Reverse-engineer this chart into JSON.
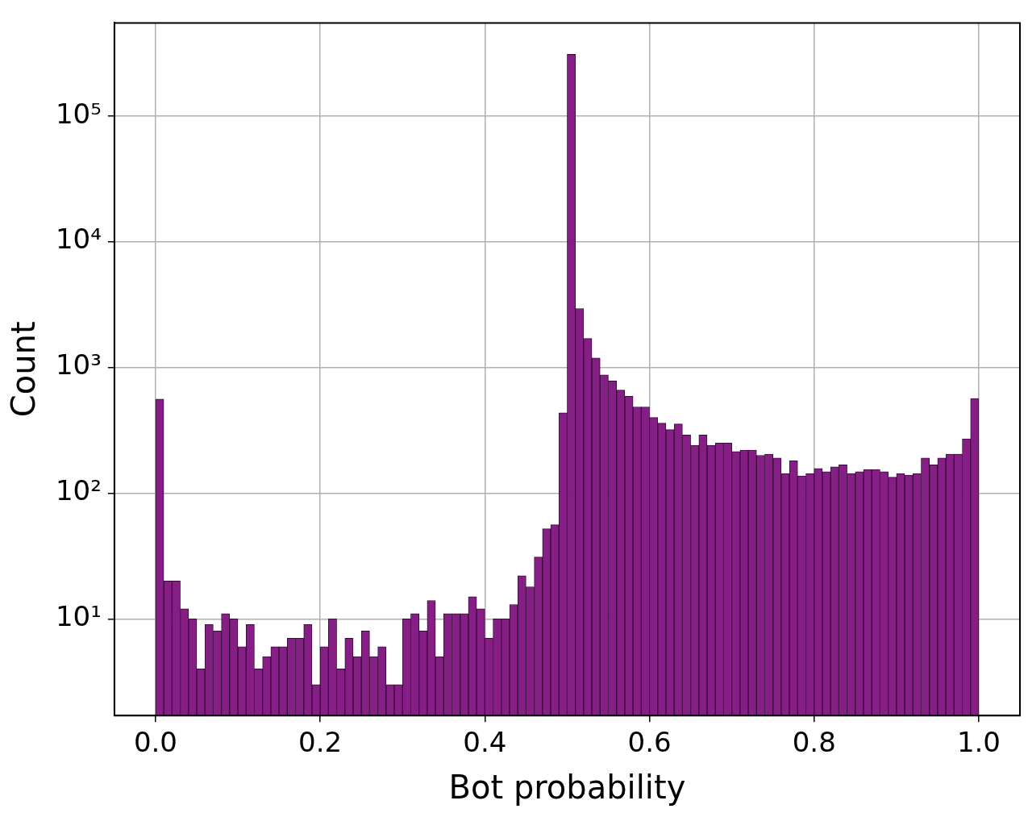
{
  "chart_data": {
    "type": "histogram",
    "xlabel": "Bot probability",
    "ylabel": "Count",
    "color": "#851f85",
    "log": "y",
    "grid": true,
    "bins": [
      0,
      0.01,
      0.02,
      0.03,
      0.04,
      0.05,
      0.06,
      0.07,
      0.08,
      0.09,
      0.1,
      0.11,
      0.12,
      0.13,
      0.14,
      0.15,
      0.16,
      0.17,
      0.18,
      0.19,
      0.2,
      0.21,
      0.22,
      0.23,
      0.24,
      0.25,
      0.26,
      0.27,
      0.28,
      0.29,
      0.3,
      0.31,
      0.32,
      0.33,
      0.34,
      0.35,
      0.36,
      0.37,
      0.38,
      0.39,
      0.4,
      0.41,
      0.42,
      0.43,
      0.44,
      0.45,
      0.46,
      0.47,
      0.48,
      0.49,
      0.5,
      0.51,
      0.52,
      0.53,
      0.54,
      0.55,
      0.56,
      0.57,
      0.58,
      0.59,
      0.6,
      0.61,
      0.62,
      0.63,
      0.64,
      0.65,
      0.66,
      0.67,
      0.68,
      0.69,
      0.7,
      0.71,
      0.72,
      0.73,
      0.74,
      0.75,
      0.76,
      0.77,
      0.78,
      0.79,
      0.8,
      0.81,
      0.82,
      0.83,
      0.84,
      0.85,
      0.86,
      0.87,
      0.88,
      0.89,
      0.9,
      0.91,
      0.92,
      0.93,
      0.94,
      0.95,
      0.96,
      0.97,
      0.98,
      0.99,
      1
    ],
    "values": [
      560,
      20,
      20,
      12,
      10,
      4,
      9,
      8,
      11,
      10,
      6,
      9,
      4,
      5,
      6,
      6,
      7,
      7,
      9,
      3,
      6,
      10,
      4,
      7,
      5,
      8,
      5,
      6,
      3,
      3,
      10,
      11,
      8,
      14,
      5,
      11,
      11,
      11,
      15,
      12,
      7,
      10,
      10,
      13,
      22,
      18,
      31,
      52,
      56,
      435,
      310000,
      2940,
      1700,
      1190,
      870,
      780,
      660,
      590,
      485,
      485,
      400,
      360,
      320,
      355,
      290,
      240,
      290,
      240,
      250,
      250,
      214,
      220,
      220,
      200,
      204,
      190,
      143,
      181,
      137,
      143,
      157,
      148,
      162,
      168,
      143,
      148,
      154,
      154,
      148,
      134,
      143,
      139,
      143,
      190,
      168,
      190,
      204,
      204,
      270,
      566
    ],
    "xlim": [
      -0.05,
      1.05
    ],
    "xticks": [
      {
        "value": 0,
        "label": "0.0"
      },
      {
        "value": 0.2,
        "label": "0.2"
      },
      {
        "value": 0.4,
        "label": "0.4"
      },
      {
        "value": 0.6,
        "label": "0.6"
      },
      {
        "value": 0.8,
        "label": "0.8"
      },
      {
        "value": 1,
        "label": "1.0"
      }
    ],
    "ylim": [
      1.7,
      550000
    ],
    "yticks": [
      {
        "value": 10,
        "label": "10¹"
      },
      {
        "value": 100,
        "label": "10²"
      },
      {
        "value": 1000,
        "label": "10³"
      },
      {
        "value": 10000,
        "label": "10⁴"
      },
      {
        "value": 100000,
        "label": "10⁵"
      }
    ]
  }
}
